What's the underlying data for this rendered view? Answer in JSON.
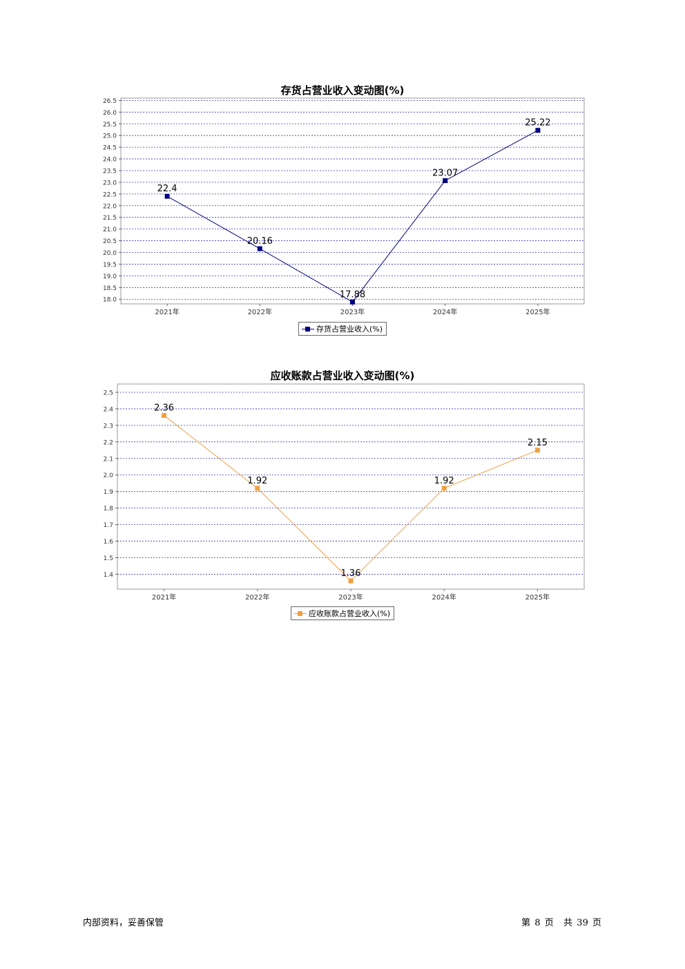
{
  "chart_data": [
    {
      "type": "line",
      "title": "存货占营业收入变动图(%)",
      "categories": [
        "2021年",
        "2022年",
        "2023年",
        "2024年",
        "2025年"
      ],
      "series": [
        {
          "name": "存货占营业收入(%)",
          "values": [
            22.4,
            20.16,
            17.88,
            23.07,
            25.22
          ],
          "color": "#000080"
        }
      ],
      "data_labels": [
        "22.4",
        "20.16",
        "17.88",
        "23.07",
        "25.22"
      ],
      "ylim": [
        17.8,
        26.6
      ],
      "yticks": [
        "18.0",
        "18.5",
        "19.0",
        "19.5",
        "20.0",
        "20.5",
        "21.0",
        "21.5",
        "22.0",
        "22.5",
        "23.0",
        "23.5",
        "24.0",
        "24.5",
        "25.0",
        "25.5",
        "26.0",
        "26.5"
      ],
      "grid": true,
      "legend": "bottom-center",
      "xlabel": "",
      "ylabel": ""
    },
    {
      "type": "line",
      "title": "应收账款占营业收入变动图(%)",
      "categories": [
        "2021年",
        "2022年",
        "2023年",
        "2024年",
        "2025年"
      ],
      "series": [
        {
          "name": "应收账款占营业收入(%)",
          "values": [
            2.36,
            1.92,
            1.36,
            1.92,
            2.15
          ],
          "color": "#f0a040"
        }
      ],
      "data_labels": [
        "2.36",
        "1.92",
        "1.36",
        "1.92",
        "2.15"
      ],
      "ylim": [
        1.31,
        2.55
      ],
      "yticks": [
        "1.4",
        "1.5",
        "1.6",
        "1.7",
        "1.8",
        "1.9",
        "2.0",
        "2.1",
        "2.2",
        "2.3",
        "2.4",
        "2.5"
      ],
      "grid": true,
      "legend": "bottom-center",
      "xlabel": "",
      "ylabel": ""
    }
  ],
  "footer": {
    "left": "内部资料，妥善保管",
    "page_prefix": "第",
    "page_current": "8",
    "page_mid": "页",
    "page_total_prefix": "共",
    "page_total": "39",
    "page_suffix": "页"
  }
}
